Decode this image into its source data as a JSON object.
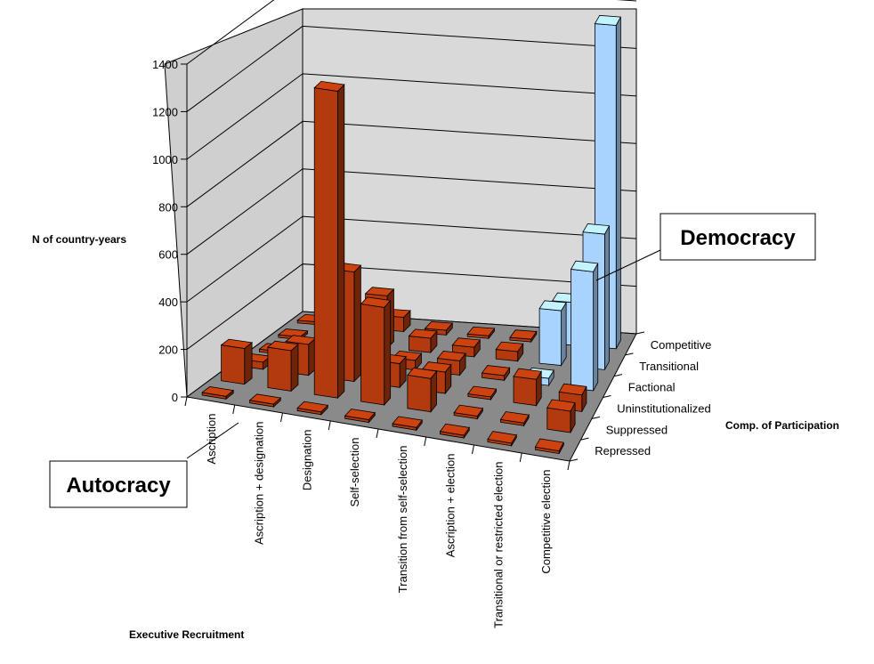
{
  "chart_data": {
    "type": "bar",
    "subtype": "3d-bar",
    "ylabel": "N of country-years",
    "xlabel": "Executive Recruitment",
    "zlabel": "Comp. of Participation",
    "ylim": [
      0,
      1400
    ],
    "yticks": [
      0,
      200,
      400,
      600,
      800,
      1000,
      1200,
      1400
    ],
    "x_categories": [
      "Ascription",
      "Ascription + designation",
      "Designation",
      "Self-selection",
      "Transition from self-selection",
      "Ascription + election",
      "Transitional or restricted election",
      "Competitive election"
    ],
    "z_categories": [
      "Repressed",
      "Suppressed",
      "Uninstitutionalized",
      "Factional",
      "Transitional",
      "Competitive"
    ],
    "cells": [
      {
        "x": "Ascription",
        "z": "Repressed",
        "value": 0
      },
      {
        "x": "Ascription + designation",
        "z": "Repressed",
        "value": 0
      },
      {
        "x": "Designation",
        "z": "Repressed",
        "value": 0
      },
      {
        "x": "Self-selection",
        "z": "Repressed",
        "value": 0
      },
      {
        "x": "Transition from self-selection",
        "z": "Repressed",
        "value": 0
      },
      {
        "x": "Ascription + election",
        "z": "Repressed",
        "value": 0
      },
      {
        "x": "Transitional or restricted election",
        "z": "Repressed",
        "value": 0
      },
      {
        "x": "Competitive election",
        "z": "Repressed",
        "value": 0
      },
      {
        "x": "Ascription",
        "z": "Suppressed",
        "value": 150
      },
      {
        "x": "Ascription + designation",
        "z": "Suppressed",
        "value": 170
      },
      {
        "x": "Designation",
        "z": "Suppressed",
        "value": 1290
      },
      {
        "x": "Self-selection",
        "z": "Suppressed",
        "value": 410
      },
      {
        "x": "Transition from self-selection",
        "z": "Suppressed",
        "value": 140
      },
      {
        "x": "Ascription + election",
        "z": "Suppressed",
        "value": 0
      },
      {
        "x": "Transitional or restricted election",
        "z": "Suppressed",
        "value": 0
      },
      {
        "x": "Competitive election",
        "z": "Suppressed",
        "value": 90
      },
      {
        "x": "Ascription",
        "z": "Uninstitutionalized",
        "value": 30
      },
      {
        "x": "Ascription + designation",
        "z": "Uninstitutionalized",
        "value": 130
      },
      {
        "x": "Designation",
        "z": "Uninstitutionalized",
        "value": 460
      },
      {
        "x": "Self-selection",
        "z": "Uninstitutionalized",
        "value": 100
      },
      {
        "x": "Transition from self-selection",
        "z": "Uninstitutionalized",
        "value": 90
      },
      {
        "x": "Ascription + election",
        "z": "Uninstitutionalized",
        "value": 0
      },
      {
        "x": "Transitional or restricted election",
        "z": "Uninstitutionalized",
        "value": 110
      },
      {
        "x": "Competitive election",
        "z": "Uninstitutionalized",
        "value": 70
      },
      {
        "x": "Ascription",
        "z": "Factional",
        "value": 0
      },
      {
        "x": "Ascription + designation",
        "z": "Factional",
        "value": 40
      },
      {
        "x": "Designation",
        "z": "Factional",
        "value": 200
      },
      {
        "x": "Self-selection",
        "z": "Factional",
        "value": 40
      },
      {
        "x": "Transition from self-selection",
        "z": "Factional",
        "value": 60
      },
      {
        "x": "Ascription + election",
        "z": "Factional",
        "value": 20
      },
      {
        "x": "Transitional or restricted election",
        "z": "Factional",
        "value": 30
      },
      {
        "x": "Competitive election",
        "z": "Factional",
        "value": 500
      },
      {
        "x": "Ascription",
        "z": "Transitional",
        "value": 0
      },
      {
        "x": "Ascription + designation",
        "z": "Transitional",
        "value": 20
      },
      {
        "x": "Designation",
        "z": "Transitional",
        "value": 220
      },
      {
        "x": "Self-selection",
        "z": "Transitional",
        "value": 60
      },
      {
        "x": "Transition from self-selection",
        "z": "Transitional",
        "value": 40
      },
      {
        "x": "Ascription + election",
        "z": "Transitional",
        "value": 40
      },
      {
        "x": "Transitional or restricted election",
        "z": "Transitional",
        "value": 230
      },
      {
        "x": "Competitive election",
        "z": "Transitional",
        "value": 570
      },
      {
        "x": "Ascription",
        "z": "Competitive",
        "value": 0
      },
      {
        "x": "Ascription + designation",
        "z": "Competitive",
        "value": 0
      },
      {
        "x": "Designation",
        "z": "Competitive",
        "value": 60
      },
      {
        "x": "Self-selection",
        "z": "Competitive",
        "value": 20
      },
      {
        "x": "Transition from self-selection",
        "z": "Competitive",
        "value": 0
      },
      {
        "x": "Ascription + election",
        "z": "Competitive",
        "value": 0
      },
      {
        "x": "Transitional or restricted election",
        "z": "Competitive",
        "value": 180
      },
      {
        "x": "Competitive election",
        "z": "Competitive",
        "value": 1360
      }
    ],
    "regions": {
      "autocracy_label": "Autocracy",
      "democracy_label": "Democracy"
    },
    "colors": {
      "autocracy_bar": "#b23a0e",
      "democracy_bar": "#a9d3ff",
      "floor": "#8a8a8a",
      "walls": "#c8c8c8"
    }
  }
}
